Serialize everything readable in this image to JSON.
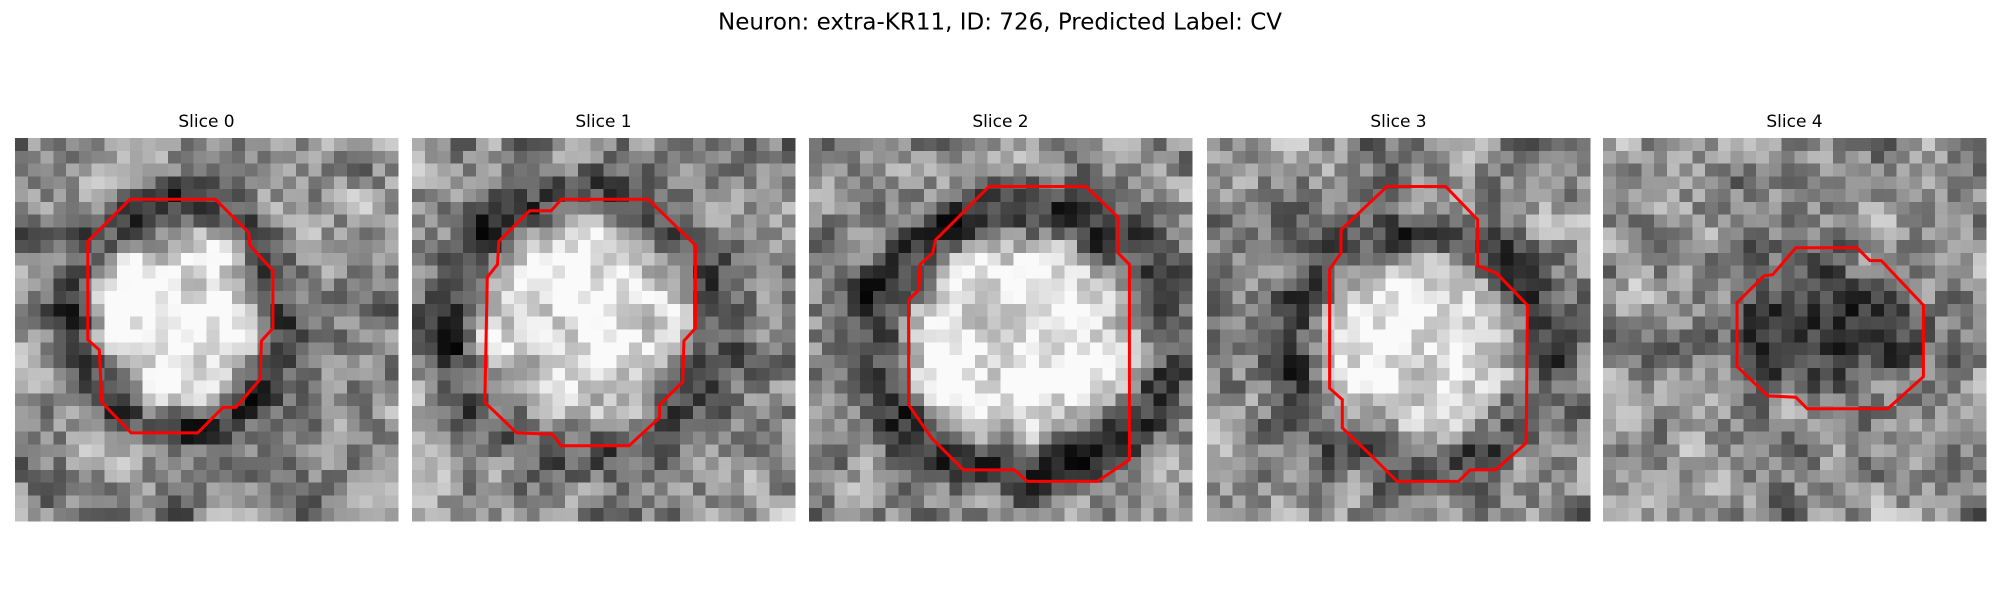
{
  "header": {
    "title": "Neuron: extra-KR11, ID: 726, Predicted Label: CV"
  },
  "panels": [
    {
      "title": "Slice 0"
    },
    {
      "title": "Slice 1"
    },
    {
      "title": "Slice 2"
    },
    {
      "title": "Slice 3"
    },
    {
      "title": "Slice 4"
    }
  ]
}
